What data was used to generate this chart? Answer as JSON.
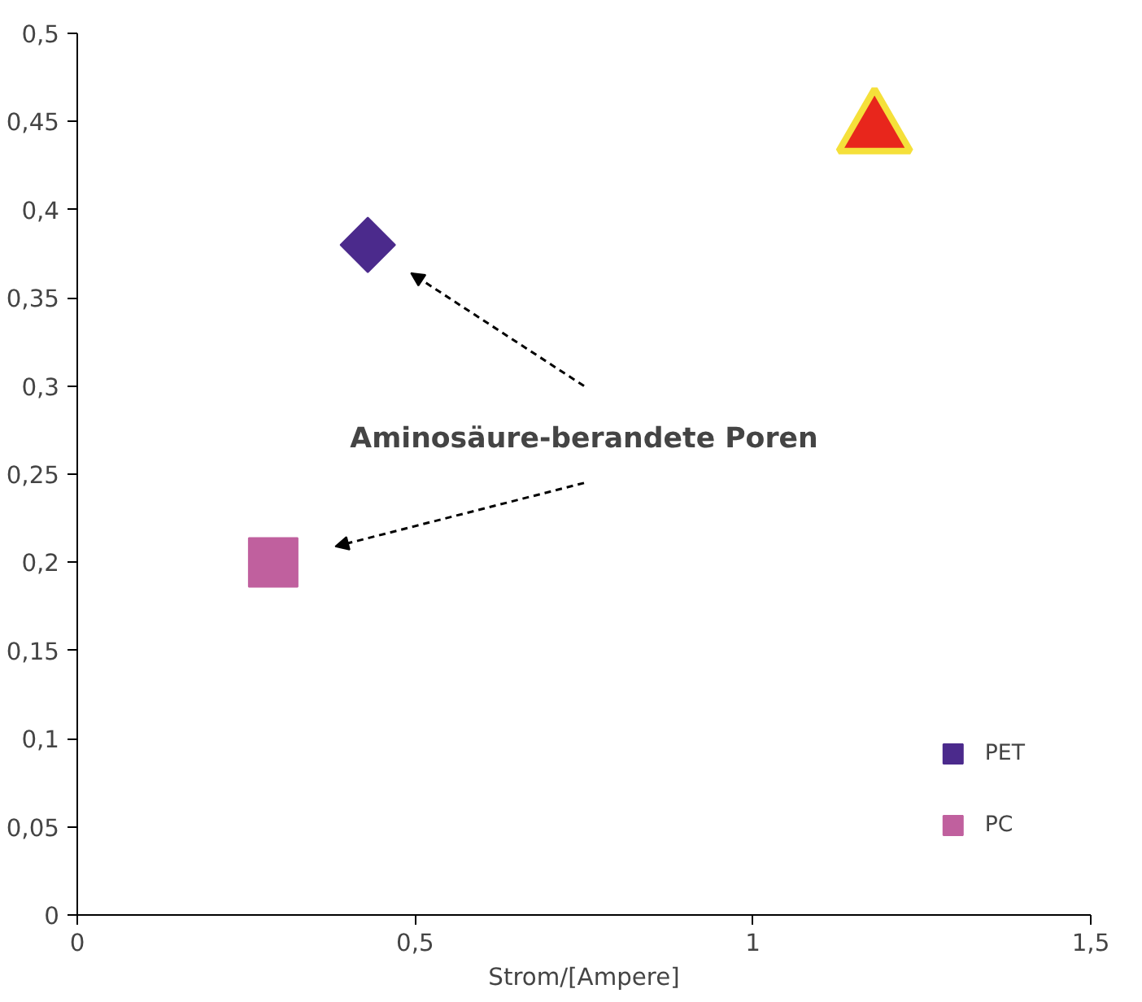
{
  "chart_data": {
    "type": "scatter",
    "xlabel": "Strom/[Ampere]",
    "series": [
      {
        "name": "PET",
        "color": "#4b2a8c",
        "marker": "diamond",
        "x": [
          0.43
        ],
        "values": [
          0.38
        ]
      },
      {
        "name": "PC",
        "color": "#c0609e",
        "marker": "square",
        "x": [
          0.29
        ],
        "values": [
          0.2
        ]
      },
      {
        "color": "#e8261c",
        "marker": "triangle",
        "x": [
          1.18
        ],
        "values": [
          0.445
        ]
      }
    ],
    "annotations": [
      "Aminosäure-berandete Poren"
    ],
    "xlim": [
      0,
      1.5
    ],
    "ylim": [
      0,
      0.5
    ],
    "xticks": [
      0,
      {
        "value": 0.5,
        "label": "0,5"
      },
      1,
      {
        "value": 1.5,
        "label": "1,5"
      }
    ],
    "yticks": [
      0,
      {
        "value": 0.05,
        "label": "0,05"
      },
      {
        "value": 0.1,
        "label": "0,1"
      },
      {
        "value": 0.15,
        "label": "0,15"
      },
      {
        "value": 0.2,
        "label": "0,2"
      },
      {
        "value": 0.25,
        "label": "0,25"
      },
      {
        "value": 0.3,
        "label": "0,3"
      },
      {
        "value": 0.35,
        "label": "0,35"
      },
      {
        "value": 0.4,
        "label": "0,4"
      },
      {
        "value": 0.45,
        "label": "0,45"
      },
      {
        "value": 0.5,
        "label": "0,5"
      }
    ],
    "grid": false,
    "legend": "bottom right"
  }
}
